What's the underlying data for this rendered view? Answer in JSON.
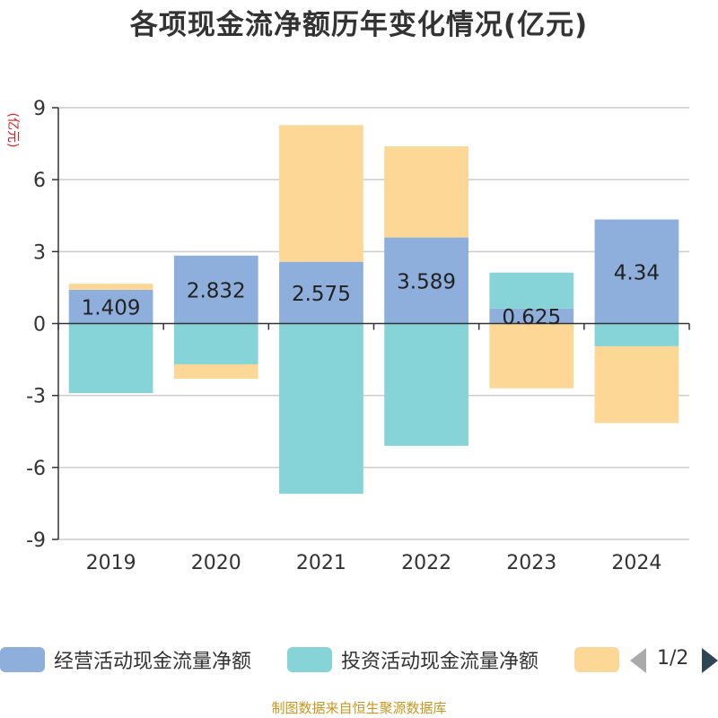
{
  "chart_data": {
    "type": "bar",
    "stacked": true,
    "title": "各项现金流净额历年变化情况(亿元)",
    "ylabel": "(亿元)",
    "xlabel": "",
    "ylim": [
      -9,
      9
    ],
    "yticks": [
      -9,
      -6,
      -3,
      0,
      3,
      6,
      9
    ],
    "grid": true,
    "legend_position": "bottom",
    "categories": [
      "2019",
      "2020",
      "2021",
      "2022",
      "2023",
      "2024"
    ],
    "series": [
      {
        "name": "经营活动现金流量净额",
        "color": "#8eaedb",
        "values": [
          1.409,
          2.832,
          2.575,
          3.589,
          0.625,
          4.34
        ],
        "labels": [
          "1.409",
          "2.832",
          "2.575",
          "3.589",
          "0.625",
          "4.34"
        ]
      },
      {
        "name": "投资活动现金流量净额",
        "color": "#86d4d8",
        "values": [
          -2.9,
          -1.7,
          -7.1,
          -5.1,
          1.5,
          -0.95
        ]
      },
      {
        "name": "",
        "color": "#fdd796",
        "values": [
          0.25,
          -0.6,
          5.7,
          3.8,
          -2.7,
          -3.2
        ]
      }
    ]
  },
  "legend_pager": "1/2",
  "source_note": "制图数据来自恒生聚源数据库"
}
